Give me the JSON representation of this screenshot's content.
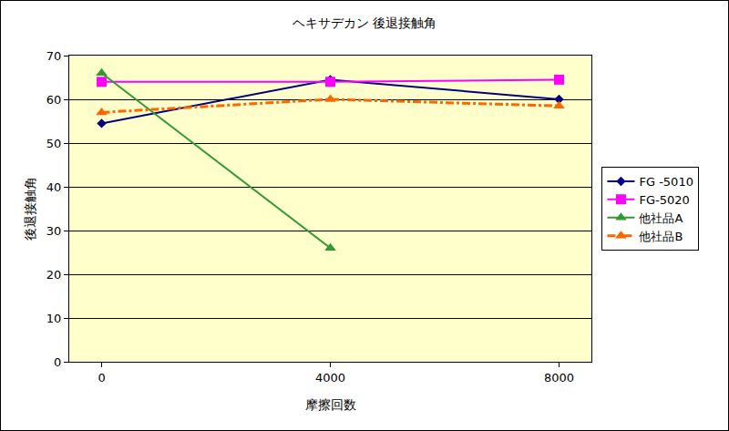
{
  "chart_data": {
    "type": "line",
    "title": "ヘキサデカン 後退接触角",
    "x_label": "摩擦回数",
    "y_label": "後退接触角",
    "categories": [
      "0",
      "4000",
      "8000"
    ],
    "series": [
      {
        "name": "FG -5010",
        "color": "#000080",
        "marker": "diamond",
        "line_style": "solid",
        "values": [
          54.5,
          64.5,
          60
        ]
      },
      {
        "name": "FG-5020",
        "color": "#FF00FF",
        "marker": "square",
        "line_style": "solid",
        "values": [
          64,
          64,
          64.5
        ]
      },
      {
        "name": "他社品A",
        "color": "#339933",
        "marker": "triangle-up",
        "line_style": "solid",
        "values": [
          66,
          26,
          null
        ]
      },
      {
        "name": "他社品B",
        "color": "#FF6600",
        "marker": "triangle-up",
        "line_style": "dashdot",
        "values": [
          57,
          60,
          58.5
        ]
      }
    ],
    "ylim": [
      0,
      70
    ],
    "yticks": [
      0,
      10,
      20,
      30,
      40,
      50,
      60,
      70
    ],
    "grid": true,
    "legend": "right"
  }
}
